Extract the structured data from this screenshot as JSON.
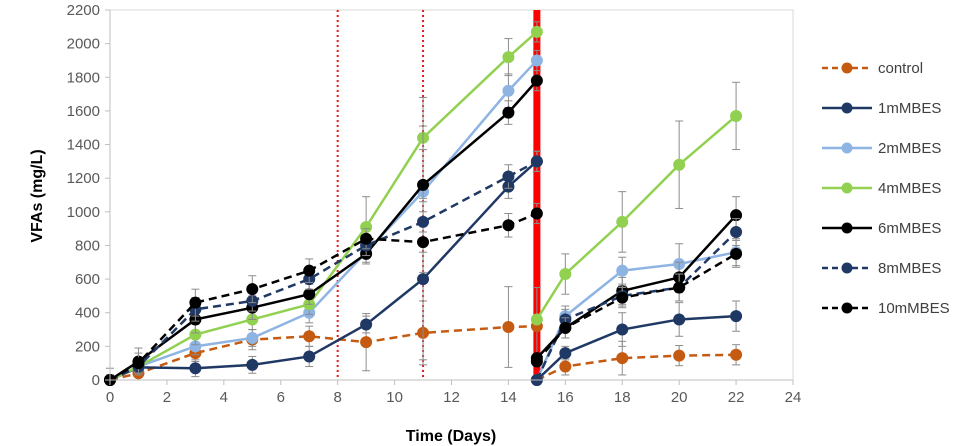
{
  "chart_data": {
    "type": "line",
    "title": "",
    "xlabel": "Time (Days)",
    "ylabel": "VFAs (mg/L)",
    "xlim": [
      0,
      24
    ],
    "ylim": [
      0,
      2200
    ],
    "x_ticks": [
      "0",
      "2",
      "4",
      "6",
      "8",
      "10",
      "12",
      "14",
      "16",
      "18",
      "20",
      "22",
      "24"
    ],
    "y_ticks": [
      "0",
      "200",
      "400",
      "600",
      "800",
      "1000",
      "1200",
      "1400",
      "1600",
      "1800",
      "2000",
      "2200"
    ],
    "x_tick_values": [
      0,
      2,
      4,
      6,
      8,
      10,
      12,
      14,
      16,
      18,
      20,
      22,
      24
    ],
    "y_tick_values": [
      0,
      200,
      400,
      600,
      800,
      1000,
      1200,
      1400,
      1600,
      1800,
      2000,
      2200
    ],
    "vertical_markers": [
      {
        "x": 8,
        "style": "dotted",
        "color": "#e31a1c"
      },
      {
        "x": 11,
        "style": "dotted",
        "color": "#e31a1c"
      },
      {
        "x": 15,
        "style": "solid",
        "color": "#ff0000"
      }
    ],
    "legend_position": "right",
    "series": [
      {
        "name": "control",
        "color": "#c55a11",
        "dashed": true,
        "segments": [
          {
            "x": [
              0,
              1,
              3,
              5,
              7,
              9,
              11,
              14,
              15
            ],
            "y": [
              0,
              40,
              160,
              240,
              260,
              225,
              280,
              315,
              320
            ],
            "err": [
              70,
              40,
              50,
              60,
              60,
              170,
              190,
              240,
              230
            ]
          },
          {
            "x": [
              15,
              16,
              18,
              20,
              22
            ],
            "y": [
              0,
              80,
              130,
              145,
              150
            ],
            "err": [
              20,
              50,
              100,
              60,
              60
            ]
          }
        ]
      },
      {
        "name": "1mMBES",
        "color": "#1f3864",
        "dashed": false,
        "segments": [
          {
            "x": [
              0,
              1,
              3,
              5,
              7,
              9,
              11,
              14,
              15
            ],
            "y": [
              0,
              75,
              70,
              90,
              140,
              330,
              600,
              1150,
              1300
            ],
            "err": [
              30,
              30,
              50,
              50,
              60,
              50,
              480,
              70,
              60
            ]
          },
          {
            "x": [
              15,
              16,
              18,
              20,
              22
            ],
            "y": [
              0,
              160,
              300,
              360,
              380
            ],
            "err": [
              20,
              40,
              100,
              100,
              90
            ]
          }
        ]
      },
      {
        "name": "2mMBES",
        "color": "#8eb4e3",
        "dashed": false,
        "segments": [
          {
            "x": [
              0,
              1,
              3,
              5,
              7,
              9,
              11,
              14,
              15
            ],
            "y": [
              0,
              80,
              200,
              250,
              400,
              760,
              1120,
              1720,
              1900
            ],
            "err": [
              30,
              30,
              50,
              50,
              60,
              60,
              60,
              100,
              60
            ]
          },
          {
            "x": [
              15,
              16,
              18,
              20,
              22
            ],
            "y": [
              0,
              380,
              650,
              690,
              760
            ],
            "err": [
              20,
              60,
              80,
              120,
              80
            ]
          }
        ]
      },
      {
        "name": "4mMBES",
        "color": "#92d050",
        "dashed": false,
        "segments": [
          {
            "x": [
              0,
              1,
              3,
              5,
              7,
              9,
              11,
              14,
              15
            ],
            "y": [
              0,
              80,
              270,
              360,
              450,
              910,
              1440,
              1920,
              2070
            ],
            "err": [
              30,
              30,
              60,
              60,
              60,
              180,
              70,
              110,
              60
            ]
          },
          {
            "x": [
              15,
              16,
              18,
              20,
              22
            ],
            "y": [
              360,
              630,
              940,
              1280,
              1570
            ],
            "err": [
              20,
              120,
              180,
              260,
              200
            ]
          }
        ]
      },
      {
        "name": "6mMBES",
        "color": "#000000",
        "dashed": false,
        "segments": [
          {
            "x": [
              0,
              1,
              3,
              5,
              7,
              9,
              11,
              14,
              15
            ],
            "y": [
              0,
              110,
              360,
              430,
              510,
              750,
              1160,
              1590,
              1780
            ],
            "err": [
              30,
              80,
              80,
              70,
              60,
              60,
              520,
              70,
              60
            ]
          },
          {
            "x": [
              15,
              16,
              18,
              20,
              22
            ],
            "y": [
              130,
              310,
              530,
              610,
              980
            ],
            "err": [
              20,
              60,
              80,
              90,
              110
            ]
          }
        ]
      },
      {
        "name": "8mMBES",
        "color": "#203864",
        "dashed": true,
        "segments": [
          {
            "x": [
              0,
              1,
              3,
              5,
              7,
              9,
              11,
              14,
              15
            ],
            "y": [
              0,
              80,
              420,
              470,
              600,
              800,
              940,
              1210,
              1300
            ],
            "err": [
              30,
              30,
              70,
              60,
              60,
              60,
              60,
              70,
              60
            ]
          },
          {
            "x": [
              15,
              16,
              18,
              20,
              22
            ],
            "y": [
              0,
              360,
              500,
              550,
              880
            ],
            "err": [
              20,
              60,
              60,
              80,
              80
            ]
          }
        ]
      },
      {
        "name": "10mMBES",
        "color": "#000000",
        "dashed": true,
        "segments": [
          {
            "x": [
              0,
              1,
              3,
              5,
              7,
              9,
              11,
              14,
              15
            ],
            "y": [
              0,
              100,
              460,
              540,
              650,
              840,
              820,
              920,
              990
            ],
            "err": [
              30,
              60,
              80,
              80,
              70,
              60,
              60,
              70,
              60
            ]
          },
          {
            "x": [
              15,
              16,
              18,
              20,
              22
            ],
            "y": [
              110,
              310,
              490,
              550,
              750
            ],
            "err": [
              20,
              60,
              60,
              80,
              80
            ]
          }
        ]
      }
    ]
  }
}
